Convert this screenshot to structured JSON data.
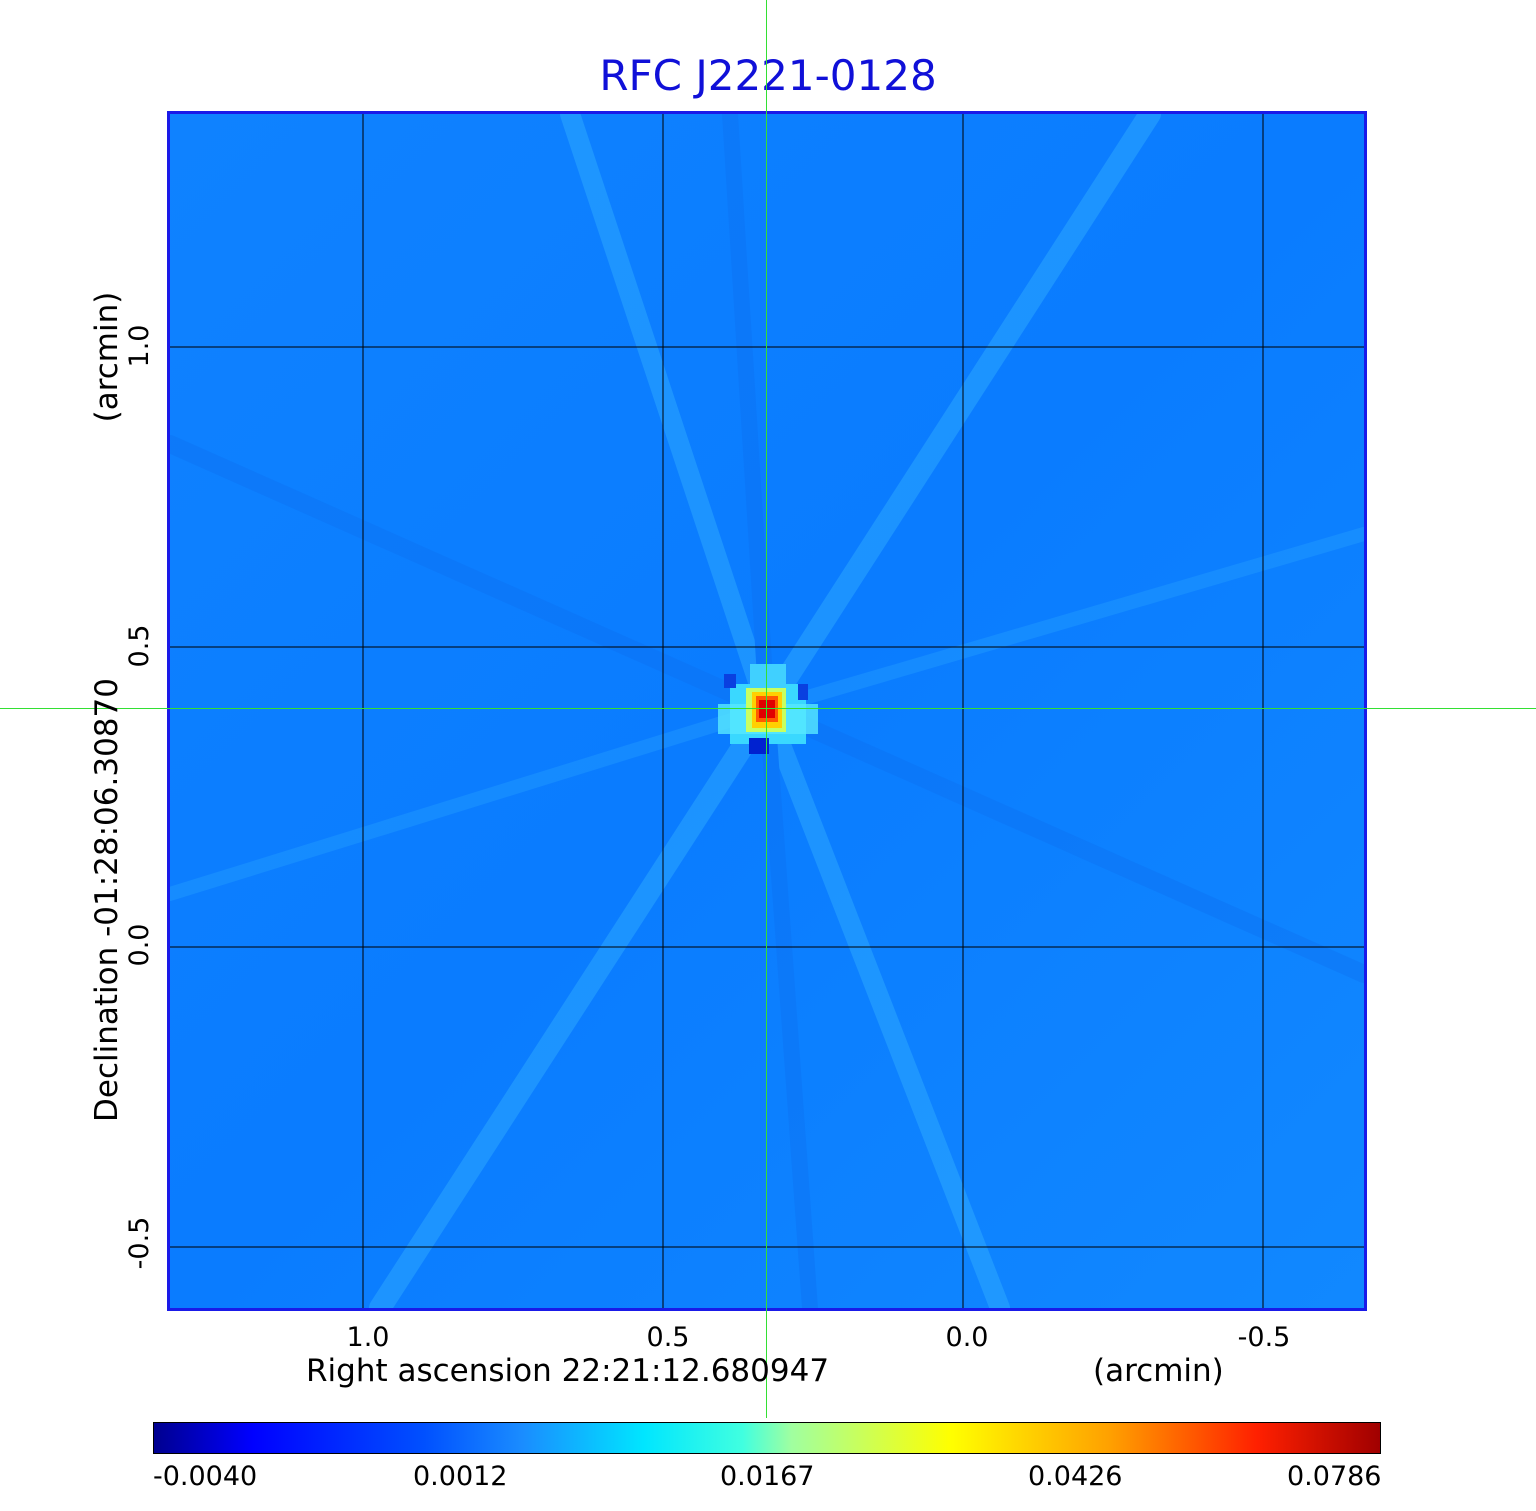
{
  "title": "RFC J2221-0128",
  "x_axis": {
    "label": "Right ascension  22:21:12.680947",
    "unit": "(arcmin)",
    "ticks": [
      "1.0",
      "0.5",
      "0.0",
      "-0.5"
    ]
  },
  "y_axis": {
    "label": "Declination  -01:28:06.30870",
    "unit": "(arcmin)",
    "ticks": [
      "1.0",
      "0.5",
      "0.0",
      "-0.5"
    ]
  },
  "colorbar": {
    "ticks": [
      "-0.0040",
      "0.0012",
      "0.0167",
      "0.0426",
      "0.0786"
    ],
    "colormap": "jet",
    "colors": [
      "#00008f",
      "#0000ff",
      "#1a8cff",
      "#00e6ff",
      "#a0ffa0",
      "#ffff00",
      "#ffa000",
      "#ff2000",
      "#a00000"
    ]
  },
  "image": {
    "background_color": "#0f82ff",
    "grid_color": "#000000",
    "frame_color": "#1a1ae8",
    "crosshair_color": "#33e033",
    "peak_color": "#e00000"
  }
}
